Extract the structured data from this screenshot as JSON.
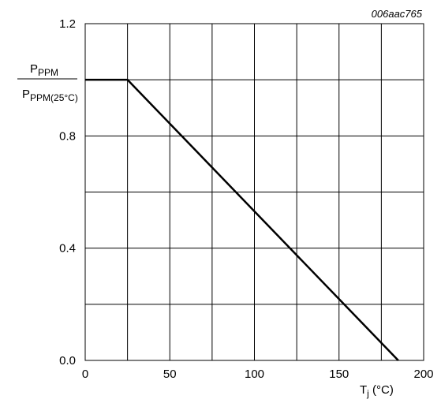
{
  "figure_id": "006aac765",
  "chart_data": {
    "type": "line",
    "x": [
      0,
      25,
      185
    ],
    "series": [
      {
        "values": [
          1.0,
          1.0,
          0.0
        ]
      }
    ],
    "xlim": [
      0,
      200
    ],
    "ylim": [
      0.0,
      1.2
    ],
    "x_ticks": [
      0,
      50,
      100,
      150,
      200
    ],
    "x_tick_labels": [
      "0",
      "50",
      "100",
      "150",
      "200"
    ],
    "y_ticks": [
      0.0,
      0.4,
      0.8,
      1.2
    ],
    "y_tick_labels": [
      "0.0",
      "0.4",
      "0.8",
      "1.2"
    ],
    "x_gridlines": [
      0,
      25,
      50,
      75,
      100,
      125,
      150,
      175,
      200
    ],
    "y_gridlines": [
      0.0,
      0.2,
      0.4,
      0.6,
      0.8,
      1.0,
      1.2
    ],
    "grid": true,
    "xlabel": {
      "main": "T",
      "sub": "j",
      "unit": " (°C)"
    },
    "ylabel": {
      "numerator": {
        "main": "P",
        "sub": "PPM"
      },
      "denominator": {
        "main": "P",
        "sub": "PPM(25°C)"
      }
    },
    "line_color": "#000000",
    "grid_color": "#000000"
  }
}
